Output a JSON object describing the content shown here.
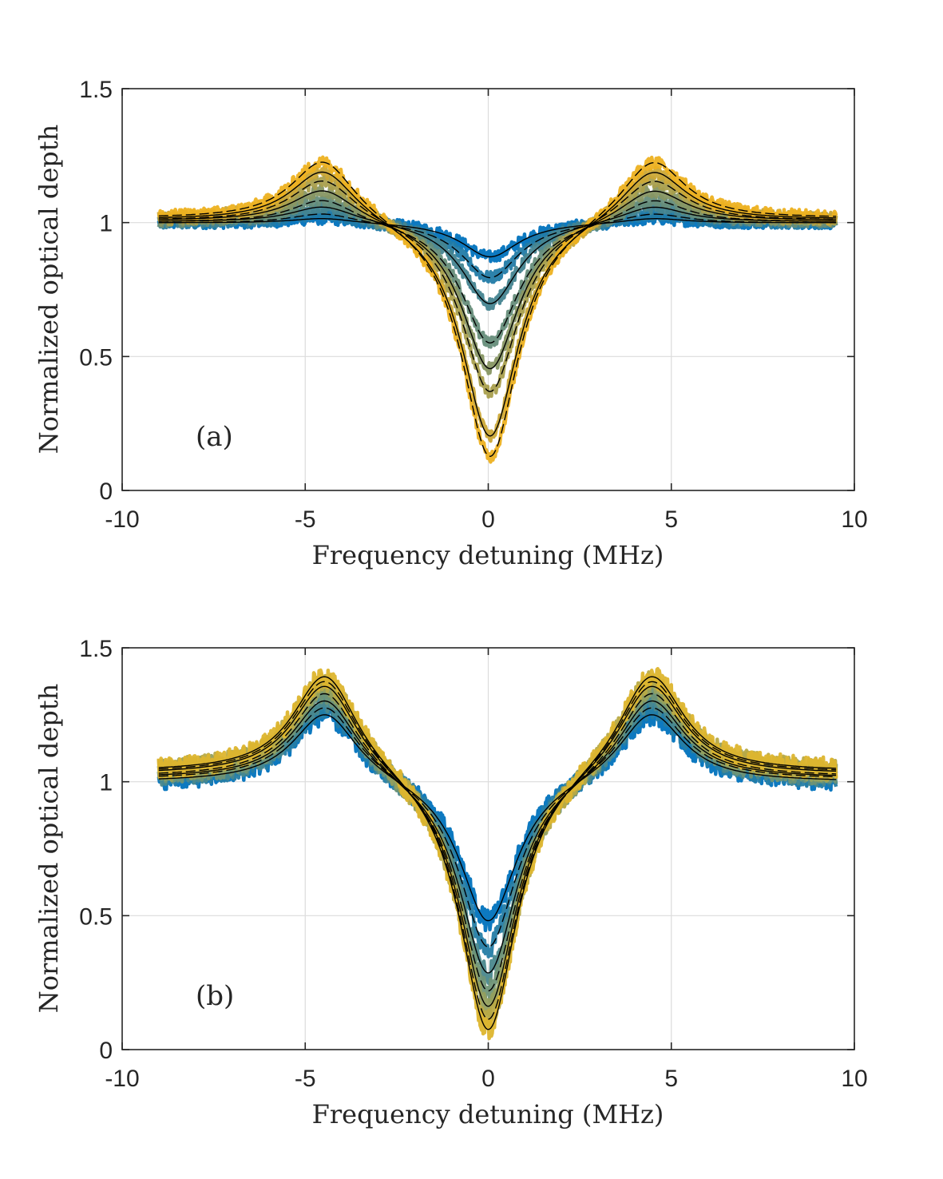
{
  "chart_data": [
    {
      "type": "line",
      "panel_label": "(a)",
      "xlabel": "Frequency detuning (MHz)",
      "ylabel": "Normalized optical depth",
      "xlim": [
        -10,
        10
      ],
      "ylim": [
        0,
        1.5
      ],
      "xticks": [
        -10,
        -5,
        0,
        5,
        10
      ],
      "xtick_labels": [
        "-10",
        "-5",
        "0",
        "5",
        "10"
      ],
      "yticks": [
        0,
        0.5,
        1,
        1.5
      ],
      "ytick_labels": [
        "0",
        "0.5",
        "1",
        "1.5"
      ],
      "grid": true,
      "x_range_data": [
        -9,
        9.5
      ],
      "peak_position_mhz": 4.5,
      "dip_position_mhz": 0.05,
      "color_ramp": [
        "#0072BD",
        "#EDB120"
      ],
      "fit_color": "#000000",
      "series": [
        {
          "min": 0.87,
          "peak": 1.02,
          "offset": 1.0
        },
        {
          "min": 0.79,
          "peak": 1.04,
          "offset": 1.0
        },
        {
          "min": 0.69,
          "peak": 1.07,
          "offset": 1.005
        },
        {
          "min": 0.54,
          "peak": 1.1,
          "offset": 1.005
        },
        {
          "min": 0.44,
          "peak": 1.14,
          "offset": 1.01
        },
        {
          "min": 0.35,
          "peak": 1.18,
          "offset": 1.01
        },
        {
          "min": 0.18,
          "peak": 1.22,
          "offset": 1.015
        },
        {
          "min": 0.1,
          "peak": 1.26,
          "offset": 1.02
        }
      ]
    },
    {
      "type": "line",
      "panel_label": "(b)",
      "xlabel": "Frequency detuning (MHz)",
      "ylabel": "Normalized optical depth",
      "xlim": [
        -10,
        10
      ],
      "ylim": [
        0,
        1.5
      ],
      "xticks": [
        -10,
        -5,
        0,
        5,
        10
      ],
      "xtick_labels": [
        "-10",
        "-5",
        "0",
        "5",
        "10"
      ],
      "yticks": [
        0,
        0.5,
        1,
        1.5
      ],
      "ytick_labels": [
        "0",
        "0.5",
        "1",
        "1.5"
      ],
      "grid": true,
      "x_range_data": [
        -9,
        9.5
      ],
      "peak_position_mhz": 4.45,
      "dip_position_mhz": 0.0,
      "color_ramp": [
        "#0072BD",
        "#DDB52E"
      ],
      "fit_color": "#000000",
      "series": [
        {
          "min": 0.45,
          "peak": 1.27,
          "offset": 1.0
        },
        {
          "min": 0.35,
          "peak": 1.3,
          "offset": 1.01
        },
        {
          "min": 0.25,
          "peak": 1.33,
          "offset": 1.015
        },
        {
          "min": 0.18,
          "peak": 1.36,
          "offset": 1.02
        },
        {
          "min": 0.12,
          "peak": 1.39,
          "offset": 1.03
        },
        {
          "min": 0.07,
          "peak": 1.41,
          "offset": 1.035
        },
        {
          "min": 0.03,
          "peak": 1.43,
          "offset": 1.04
        }
      ]
    }
  ]
}
